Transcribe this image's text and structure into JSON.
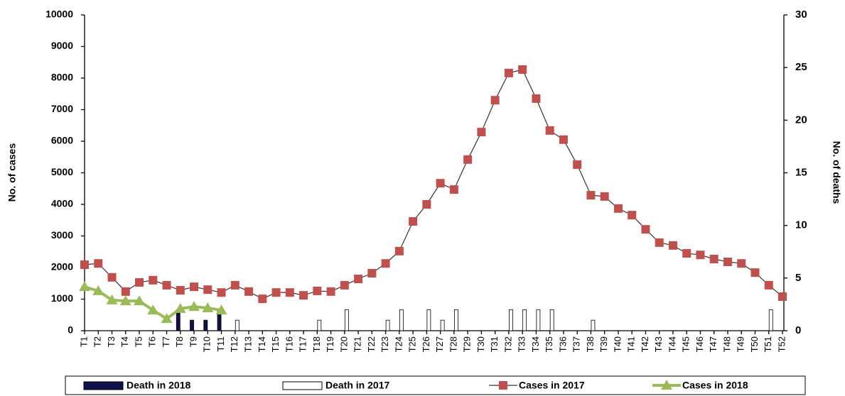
{
  "chart_data": {
    "type": "combo",
    "y_label": "No. of cases",
    "y2_label": "No. of deaths",
    "categories": [
      "T1",
      "T2",
      "T3",
      "T4",
      "T5",
      "T6",
      "T7",
      "T8",
      "T9",
      "T10",
      "T11",
      "T12",
      "T13",
      "T14",
      "T15",
      "T16",
      "T17",
      "T18",
      "T19",
      "T20",
      "T21",
      "T22",
      "T23",
      "T24",
      "T25",
      "T26",
      "T27",
      "T28",
      "T29",
      "T30",
      "T31",
      "T32",
      "T33",
      "T34",
      "T35",
      "T36",
      "T37",
      "T38",
      "T39",
      "T40",
      "T41",
      "T42",
      "T43",
      "T44",
      "T45",
      "T46",
      "T47",
      "T48",
      "T49",
      "T50",
      "T51",
      "T52"
    ],
    "ylim": [
      0,
      10000
    ],
    "yticks": [
      0,
      1000,
      2000,
      3000,
      4000,
      5000,
      6000,
      7000,
      8000,
      9000,
      10000
    ],
    "y2lim": [
      0,
      30
    ],
    "y2ticks": [
      0,
      5,
      10,
      15,
      20,
      25,
      30
    ],
    "series": [
      {
        "name": "Death in 2018",
        "type": "bar",
        "axis": "y2",
        "color": "#10104a",
        "values": [
          0,
          0,
          0,
          0,
          0,
          0,
          0,
          2,
          1,
          1,
          2,
          null,
          null,
          null,
          null,
          null,
          null,
          null,
          null,
          null,
          null,
          null,
          null,
          null,
          null,
          null,
          null,
          null,
          null,
          null,
          null,
          null,
          null,
          null,
          null,
          null,
          null,
          null,
          null,
          null,
          null,
          null,
          null,
          null,
          null,
          null,
          null,
          null,
          null,
          null,
          null,
          null
        ]
      },
      {
        "name": "Death in 2017",
        "type": "bar",
        "axis": "y2",
        "color": "#ffffff",
        "values": [
          0,
          0,
          0,
          0,
          0,
          0,
          0,
          0,
          0,
          0,
          0,
          1,
          0,
          0,
          0,
          0,
          0,
          1,
          0,
          2,
          0,
          0,
          1,
          2,
          0,
          2,
          1,
          2,
          0,
          0,
          0,
          2,
          2,
          2,
          2,
          0,
          0,
          1,
          0,
          0,
          0,
          0,
          0,
          0,
          0,
          0,
          0,
          0,
          0,
          0,
          2,
          0
        ]
      },
      {
        "name": "Cases in 2017",
        "type": "line",
        "marker": "square",
        "color": "#c0504d",
        "values": [
          2090,
          2130,
          1690,
          1240,
          1530,
          1600,
          1440,
          1280,
          1390,
          1300,
          1210,
          1440,
          1240,
          1010,
          1210,
          1210,
          1120,
          1260,
          1240,
          1440,
          1640,
          1820,
          2130,
          2520,
          3460,
          4000,
          4670,
          4470,
          5420,
          6290,
          7300,
          8160,
          8270,
          7350,
          6340,
          6050,
          5260,
          4290,
          4250,
          3870,
          3660,
          3210,
          2790,
          2700,
          2450,
          2400,
          2270,
          2180,
          2130,
          1840,
          1440,
          1080
        ]
      },
      {
        "name": "Cases in 2018",
        "type": "line",
        "marker": "triangle",
        "color": "#9bbb59",
        "values": [
          1390,
          1260,
          970,
          940,
          940,
          650,
          380,
          700,
          760,
          720,
          650,
          null,
          null,
          null,
          null,
          null,
          null,
          null,
          null,
          null,
          null,
          null,
          null,
          null,
          null,
          null,
          null,
          null,
          null,
          null,
          null,
          null,
          null,
          null,
          null,
          null,
          null,
          null,
          null,
          null,
          null,
          null,
          null,
          null,
          null,
          null,
          null,
          null,
          null,
          null,
          null,
          null
        ]
      }
    ]
  }
}
